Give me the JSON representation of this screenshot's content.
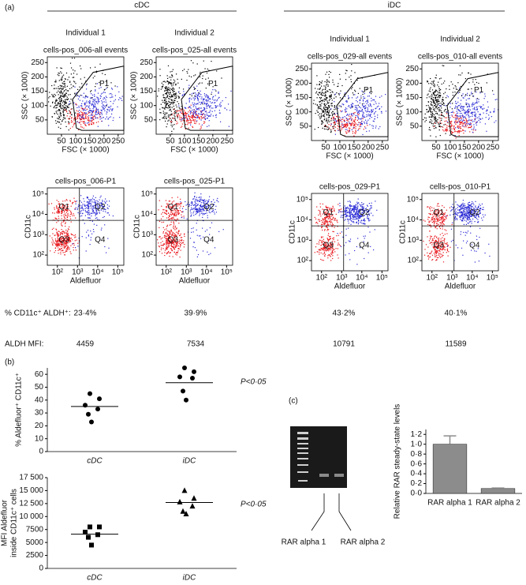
{
  "panel_a": {
    "label": "(a)",
    "groups": [
      "cDC",
      "iDC"
    ],
    "row_labels": [
      "% CD11c⁺ ALDH⁺:",
      "ALDH MFI:"
    ],
    "scatter_axes": {
      "x_label": "FSC (× 1000)",
      "y_label": "SSC (× 1000)",
      "ticks": [
        50,
        100,
        150,
        200,
        250
      ],
      "gate": "P1"
    },
    "fluor_axes": {
      "x_label": "Aldefluor",
      "y_label": "CD11c",
      "ticks": [
        "10²",
        "10³",
        "10⁴",
        "10⁵"
      ],
      "quadrants": [
        "Q1",
        "Q2",
        "Q3",
        "Q4"
      ]
    },
    "plots": [
      {
        "individual": "Individual 1",
        "title_all": "cells-pos_006-all events",
        "title_p1": "cells-pos_006-P1",
        "percent": "23·4%",
        "mfi": 4459
      },
      {
        "individual": "Individual 2",
        "title_all": "cells-pos_025-all events",
        "title_p1": "cells-pos_025-P1",
        "percent": "39·9%",
        "mfi": 7534
      },
      {
        "individual": "Individual 1",
        "title_all": "cells-pos_029-all events",
        "title_p1": "cells-pos_029-P1",
        "percent": "43·2%",
        "mfi": 10791
      },
      {
        "individual": "Individual 2",
        "title_all": "cells-pos_010-all events",
        "title_p1": "cells-pos_010-P1",
        "percent": "40·1%",
        "mfi": 11589
      }
    ]
  },
  "panel_b_label": "(b)",
  "panel_c": {
    "label": "(c)",
    "gel_labels": [
      "RAR alpha 1",
      "RAR alpha 2"
    ]
  },
  "chart_data": [
    {
      "type": "scatter",
      "ylabel": [
        "% Aldefluor⁺ CD11c⁺"
      ],
      "categories": [
        "cDC",
        "iDC"
      ],
      "marker": "circle",
      "color": "#000000",
      "values": [
        [
          45,
          41,
          36,
          33,
          29,
          23
        ],
        [
          65,
          62,
          58,
          57,
          47,
          40
        ]
      ],
      "means": [
        35,
        53.5
      ],
      "annotation": "P<0·05",
      "ylim": [
        0,
        65
      ],
      "yticks": [
        0,
        10,
        20,
        30,
        40,
        50,
        60
      ]
    },
    {
      "type": "scatter",
      "ylabel": [
        "MFI Aldefluor",
        "inside CD11c⁺ cells"
      ],
      "categories": [
        "cDC",
        "iDC"
      ],
      "marker": "square-triangle",
      "color": "#000000",
      "values": [
        [
          8000,
          8000,
          7000,
          6500,
          6000,
          4500
        ],
        [
          15000,
          13500,
          12800,
          12000,
          11000,
          10500
        ]
      ],
      "means": [
        6600,
        12700
      ],
      "annotation": "P<0·05",
      "ylim": [
        0,
        17500
      ],
      "yticks": [
        0,
        2500,
        5000,
        7500,
        {
          "value": 10000,
          "label": "10 000"
        },
        {
          "value": 12500,
          "label": "12 500"
        },
        {
          "value": 15000,
          "label": "15 000"
        },
        {
          "value": 17500,
          "label": "17 500"
        }
      ]
    },
    {
      "type": "bar",
      "ylabel": [
        "Relative RAR steady-state levels"
      ],
      "categories": [
        "RAR alpha 1",
        "RAR alpha 2"
      ],
      "color": "#8c8c8c",
      "values": [
        1.0,
        0.1
      ],
      "errors": [
        0.17,
        0.01
      ],
      "ylim": [
        0,
        1.3
      ],
      "yticks": [
        {
          "value": 0,
          "label": "0·0"
        },
        {
          "value": 0.2,
          "label": "0·2"
        },
        {
          "value": 0.4,
          "label": "0·4"
        },
        {
          "value": 0.6,
          "label": "0·6"
        },
        {
          "value": 0.8,
          "label": "0·8"
        },
        {
          "value": 1.0,
          "label": "1·0"
        },
        {
          "value": 1.2,
          "label": "1·2"
        }
      ]
    }
  ]
}
